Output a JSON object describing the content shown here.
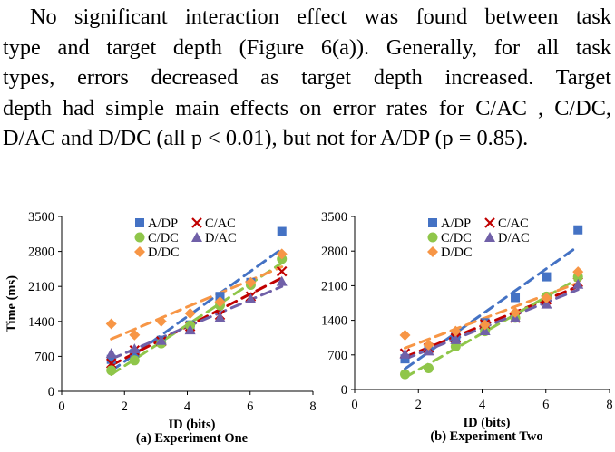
{
  "paragraph": {
    "lines": [
      "No significant interaction effect was found between task",
      "type and target depth (Figure 6(a)). Generally, for all task",
      "types, errors decreased as target depth increased. Target",
      "depth had simple main effects on error rates for C/AC , C/DC,",
      "D/AC and D/DC (all p < 0.01), but not for A/DP (p = 0.85)."
    ]
  },
  "series_styles": [
    {
      "name": "A/DP",
      "color": "#4472c4",
      "marker": "square"
    },
    {
      "name": "C/AC",
      "color": "#c00000",
      "marker": "x"
    },
    {
      "name": "C/DC",
      "color": "#8fc64a",
      "marker": "circle"
    },
    {
      "name": "D/AC",
      "color": "#7060a8",
      "marker": "triangle"
    },
    {
      "name": "D/DC",
      "color": "#f79646",
      "marker": "diamond"
    }
  ],
  "chart_data": [
    {
      "type": "scatter",
      "title": "(a) Experiment One",
      "xlabel": "ID (bits)",
      "ylabel": "Time (ms)",
      "xlim": [
        0,
        8
      ],
      "ylim": [
        0,
        3500
      ],
      "xticks": [
        0,
        2,
        4,
        6,
        8
      ],
      "yticks": [
        0,
        700,
        1400,
        2100,
        2800,
        3500
      ],
      "legend": "top-center",
      "trendlines": "dashed linear fit per series",
      "series": [
        {
          "name": "A/DP",
          "x": [
            1.58,
            2.32,
            3.17,
            4.09,
            5.04,
            6.02,
            7.01
          ],
          "y": [
            640,
            760,
            1020,
            1330,
            1900,
            2180,
            3200
          ]
        },
        {
          "name": "C/AC",
          "x": [
            1.58,
            2.32,
            3.17,
            4.09,
            5.04,
            6.02,
            7.01
          ],
          "y": [
            560,
            820,
            1000,
            1300,
            1530,
            1900,
            2400
          ]
        },
        {
          "name": "C/DC",
          "x": [
            1.58,
            2.32,
            3.17,
            4.09,
            5.04,
            6.02,
            7.01
          ],
          "y": [
            420,
            620,
            960,
            1320,
            1720,
            2130,
            2650
          ]
        },
        {
          "name": "D/AC",
          "x": [
            1.58,
            2.32,
            3.17,
            4.09,
            5.04,
            6.02,
            7.01
          ],
          "y": [
            760,
            850,
            1020,
            1230,
            1480,
            1850,
            2200
          ]
        },
        {
          "name": "D/DC",
          "x": [
            1.58,
            2.32,
            3.17,
            4.09,
            5.04,
            6.02,
            7.01
          ],
          "y": [
            1350,
            1130,
            1400,
            1560,
            1790,
            2180,
            2750
          ]
        }
      ]
    },
    {
      "type": "scatter",
      "title": "(b) Experiment Two",
      "xlabel": "ID (bits)",
      "ylabel": "",
      "xlim": [
        0,
        8
      ],
      "ylim": [
        0,
        3500
      ],
      "xticks": [
        0,
        2,
        4,
        6,
        8
      ],
      "yticks": [
        0,
        700,
        1400,
        2100,
        2800,
        3500
      ],
      "legend": "top-center",
      "trendlines": "dashed linear fit per series",
      "series": [
        {
          "name": "A/DP",
          "x": [
            1.58,
            2.32,
            3.17,
            4.09,
            5.04,
            6.02,
            7.01
          ],
          "y": [
            620,
            800,
            1080,
            1350,
            1860,
            2280,
            3230
          ]
        },
        {
          "name": "C/AC",
          "x": [
            1.58,
            2.32,
            3.17,
            4.09,
            5.04,
            6.02,
            7.01
          ],
          "y": [
            730,
            840,
            1040,
            1320,
            1450,
            1820,
            2170
          ]
        },
        {
          "name": "C/DC",
          "x": [
            1.58,
            2.32,
            3.17,
            4.09,
            5.04,
            6.02,
            7.01
          ],
          "y": [
            310,
            430,
            870,
            1180,
            1450,
            1880,
            2280
          ]
        },
        {
          "name": "D/AC",
          "x": [
            1.58,
            2.32,
            3.17,
            4.09,
            5.04,
            6.02,
            7.01
          ],
          "y": [
            720,
            780,
            1010,
            1190,
            1450,
            1730,
            2130
          ]
        },
        {
          "name": "D/DC",
          "x": [
            1.58,
            2.32,
            3.17,
            4.09,
            5.04,
            6.02,
            7.01
          ],
          "y": [
            1100,
            900,
            1180,
            1310,
            1560,
            1850,
            2380
          ]
        }
      ]
    }
  ]
}
